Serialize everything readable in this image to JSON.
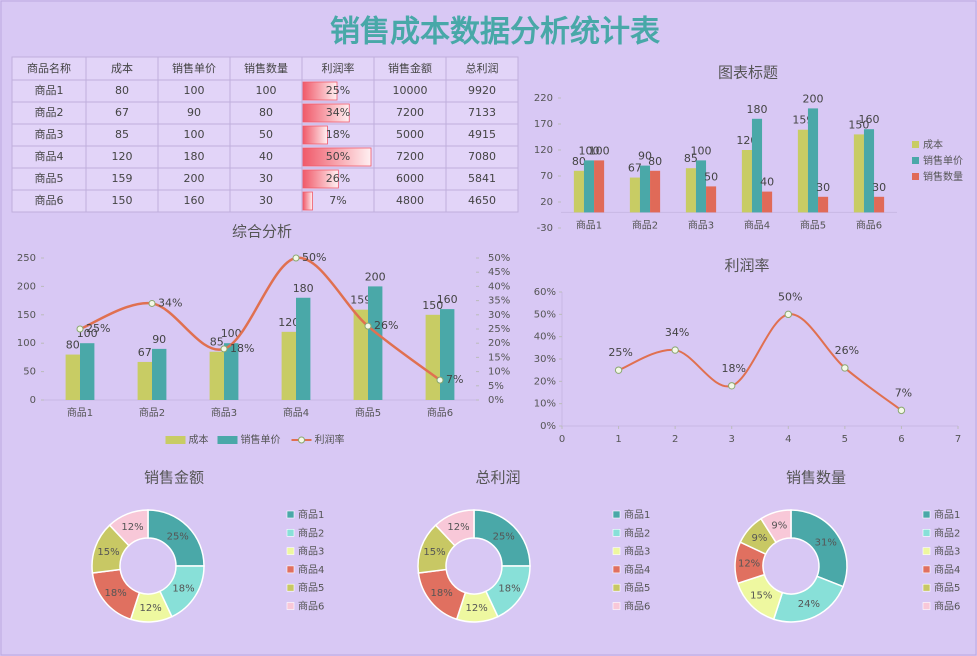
{
  "title": "销售成本数据分析统计表",
  "table": {
    "header": [
      "商品名称",
      "成本",
      "销售单价",
      "销售数量",
      "利润率",
      "销售金额",
      "总利润"
    ],
    "bar_color": "#f05a6a",
    "rows": [
      [
        "商品1",
        80,
        100,
        100,
        {
          "value": 25,
          "label": "25%"
        },
        10000,
        9920
      ],
      [
        "商品2",
        67,
        90,
        80,
        {
          "value": 34,
          "label": "34%"
        },
        7200,
        7133
      ],
      [
        "商品3",
        85,
        100,
        50,
        {
          "value": 18,
          "label": "18%"
        },
        5000,
        4915
      ],
      [
        "商品4",
        120,
        180,
        40,
        {
          "value": 50,
          "label": "50%"
        },
        7200,
        7080
      ],
      [
        "商品5",
        159,
        200,
        30,
        {
          "value": 26,
          "label": "26%"
        },
        6000,
        5841
      ],
      [
        "商品6",
        150,
        160,
        30,
        {
          "value": 7,
          "label": "7%"
        },
        4800,
        4650
      ]
    ]
  },
  "chart_data": [
    {
      "type": "bar",
      "title": "图表标题",
      "categories": [
        "商品1",
        "商品2",
        "商品3",
        "商品4",
        "商品5",
        "商品6"
      ],
      "series": [
        {
          "name": "成本",
          "color": "#c8cc64",
          "values": [
            80,
            67,
            85,
            120,
            159,
            150
          ]
        },
        {
          "name": "销售单价",
          "color": "#4aa8a8",
          "values": [
            100,
            90,
            100,
            180,
            200,
            160
          ]
        },
        {
          "name": "销售数量",
          "color": "#e06a58",
          "values": [
            100,
            80,
            50,
            40,
            30,
            30
          ]
        }
      ],
      "ylim": [
        -30,
        220
      ],
      "yticks": [
        -30,
        20,
        70,
        120,
        170,
        220
      ],
      "legend": "right",
      "data_labels": true
    },
    {
      "type": "combo",
      "title": "综合分析",
      "categories": [
        "商品1",
        "商品2",
        "商品3",
        "商品4",
        "商品5",
        "商品6"
      ],
      "series": [
        {
          "name": "成本",
          "type": "bar",
          "color": "#c8cc64",
          "values": [
            80,
            67,
            85,
            120,
            159,
            150
          ]
        },
        {
          "name": "销售单价",
          "type": "bar",
          "color": "#4aa8a8",
          "values": [
            100,
            90,
            100,
            180,
            200,
            160
          ]
        },
        {
          "name": "利润率",
          "type": "line",
          "axis": "y2",
          "color": "#e07050",
          "smooth": true,
          "values": [
            25,
            34,
            18,
            50,
            26,
            7
          ],
          "value_labels": [
            "25%",
            "34%",
            "18%",
            "50%",
            "26%",
            "7%"
          ]
        }
      ],
      "ylim": [
        0,
        250
      ],
      "yticks": [
        0,
        50,
        100,
        150,
        200,
        250
      ],
      "y2lim": [
        0,
        50
      ],
      "y2ticks": [
        {
          "value": 0,
          "label": "0%"
        },
        {
          "value": 5,
          "label": "5%"
        },
        {
          "value": 10,
          "label": "10%"
        },
        {
          "value": 15,
          "label": "15%"
        },
        {
          "value": 20,
          "label": "20%"
        },
        {
          "value": 25,
          "label": "25%"
        },
        {
          "value": 30,
          "label": "30%"
        },
        {
          "value": 35,
          "label": "35%"
        },
        {
          "value": 40,
          "label": "40%"
        },
        {
          "value": 45,
          "label": "45%"
        },
        {
          "value": 50,
          "label": "50%"
        }
      ],
      "legend": "bottom",
      "data_labels": true
    },
    {
      "type": "line",
      "title": "利润率",
      "x": [
        1,
        2,
        3,
        4,
        5,
        6
      ],
      "series": [
        {
          "color": "#e07050",
          "smooth": true,
          "values": [
            25,
            34,
            18,
            50,
            26,
            7
          ],
          "value_labels": [
            "25%",
            "34%",
            "18%",
            "50%",
            "26%",
            "7%"
          ]
        }
      ],
      "xlim": [
        0,
        7
      ],
      "xticks": [
        0,
        1,
        2,
        3,
        4,
        5,
        6,
        7
      ],
      "ylim": [
        0,
        60
      ],
      "yticks": [
        {
          "value": 0,
          "label": "0%"
        },
        {
          "value": 10,
          "label": "10%"
        },
        {
          "value": 20,
          "label": "20%"
        },
        {
          "value": 30,
          "label": "30%"
        },
        {
          "value": 40,
          "label": "40%"
        },
        {
          "value": 50,
          "label": "50%"
        },
        {
          "value": 60,
          "label": "60%"
        }
      ]
    },
    {
      "type": "donut",
      "title": "销售金额",
      "categories": [
        "商品1",
        "商品2",
        "商品3",
        "商品4",
        "商品5",
        "商品6"
      ],
      "colors": [
        "#4aa8a8",
        "#88e0d8",
        "#eef8a0",
        "#e07060",
        "#c8c864",
        "#f8c8d8"
      ],
      "values": [
        25,
        18,
        12,
        18,
        15,
        12
      ],
      "value_labels": [
        "25%",
        "18%",
        "12%",
        "18%",
        "15%",
        "12%"
      ],
      "legend": "right"
    },
    {
      "type": "donut",
      "title": "总利润",
      "categories": [
        "商品1",
        "商品2",
        "商品3",
        "商品4",
        "商品5",
        "商品6"
      ],
      "colors": [
        "#4aa8a8",
        "#88e0d8",
        "#eef8a0",
        "#e07060",
        "#c8c864",
        "#f8c8d8"
      ],
      "values": [
        25,
        18,
        12,
        18,
        15,
        12
      ],
      "value_labels": [
        "25%",
        "18%",
        "12%",
        "18%",
        "15%",
        "12%"
      ],
      "legend": "right"
    },
    {
      "type": "donut",
      "title": "销售数量",
      "categories": [
        "商品1",
        "商品2",
        "商品3",
        "商品4",
        "商品5",
        "商品6"
      ],
      "colors": [
        "#4aa8a8",
        "#88e0d8",
        "#eef8a0",
        "#e07060",
        "#c8c864",
        "#f8c8d8"
      ],
      "values": [
        31,
        24,
        15,
        12,
        9,
        9
      ],
      "value_labels": [
        "31%",
        "24%",
        "15%",
        "12%",
        "9%",
        "9%"
      ],
      "legend": "right"
    }
  ]
}
